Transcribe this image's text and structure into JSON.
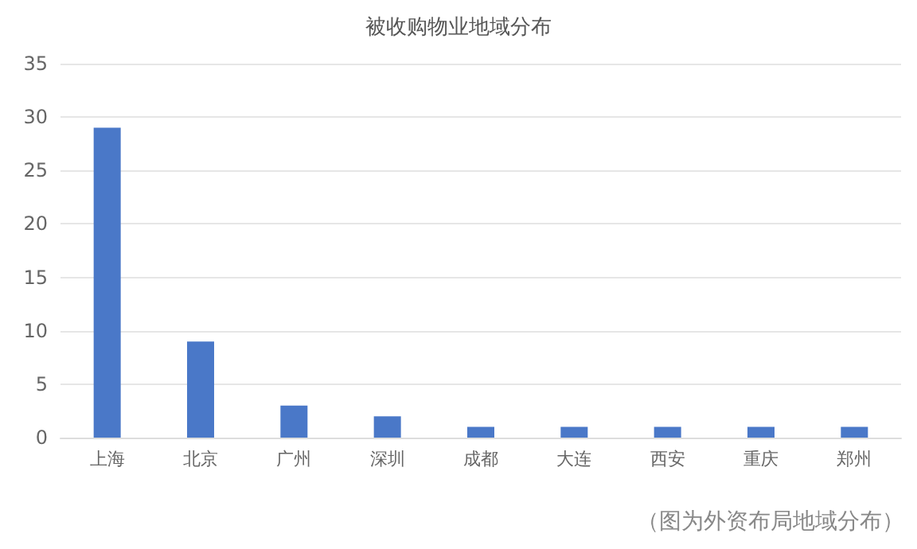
{
  "chart_data": {
    "type": "bar",
    "title": "被收购物业地域分布",
    "categories": [
      "上海",
      "北京",
      "广州",
      "深圳",
      "成都",
      "大连",
      "西安",
      "重庆",
      "郑州"
    ],
    "values": [
      29,
      9,
      3,
      2,
      1,
      1,
      1,
      1,
      1
    ],
    "color": "#4a78c8",
    "ylim": [
      0,
      35
    ],
    "yticks": [
      0,
      5,
      10,
      15,
      20,
      25,
      30,
      35
    ],
    "grid": "y",
    "annotations": [
      "（图为外资布局地域分布）"
    ]
  }
}
